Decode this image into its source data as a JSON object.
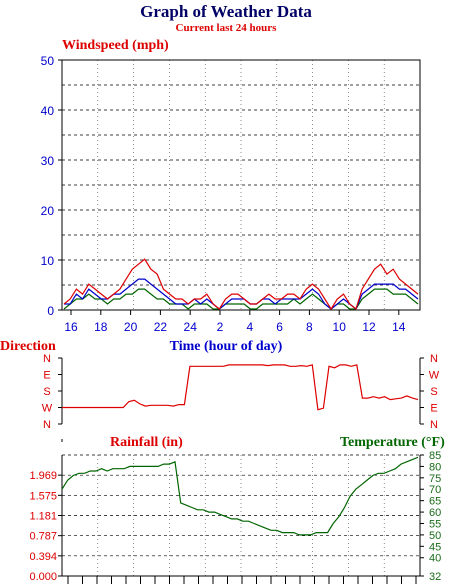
{
  "title": "Graph of Weather Data",
  "subtitle": "Current last 24 hours",
  "colors": {
    "title": "#000066",
    "red": "#dd0000",
    "blue": "#0000cc",
    "green": "#006600",
    "darkgreen": "#1a6b1a",
    "grid": "#000000"
  },
  "chart_data": [
    {
      "type": "line",
      "ylabel": "Windspeed (mph)",
      "xlabel": "Time (hour of day)",
      "ylim": [
        0,
        50
      ],
      "yticks": [
        "0",
        "10",
        "20",
        "30",
        "40",
        "50"
      ],
      "xticks": [
        "16",
        "18",
        "20",
        "22",
        "24",
        "2",
        "4",
        "6",
        "8",
        "10",
        "12",
        "14"
      ],
      "grid": true,
      "series_colors": [
        "red",
        "blue",
        "green"
      ],
      "series": [
        {
          "values": [
            1,
            2,
            4,
            3,
            5,
            4,
            3,
            2,
            3,
            4,
            6,
            8,
            9,
            10,
            8,
            7,
            4,
            3,
            2,
            2,
            1,
            2,
            2,
            3,
            1,
            0,
            2,
            3,
            3,
            2,
            1,
            1,
            2,
            3,
            2,
            2,
            3,
            3,
            2,
            4,
            5,
            4,
            2,
            0,
            2,
            3,
            1,
            0,
            4,
            6,
            8,
            9,
            7,
            8,
            6,
            5,
            4,
            3
          ]
        },
        {
          "values": [
            1,
            1,
            3,
            2,
            4,
            3,
            2,
            2,
            3,
            3,
            4,
            5,
            6,
            6,
            5,
            4,
            3,
            2,
            1,
            1,
            1,
            2,
            1,
            2,
            1,
            0,
            1,
            2,
            2,
            2,
            1,
            1,
            2,
            2,
            1,
            2,
            2,
            2,
            2,
            3,
            4,
            3,
            1,
            0,
            1,
            2,
            1,
            0,
            3,
            4,
            5,
            5,
            5,
            5,
            4,
            4,
            3,
            2
          ]
        },
        {
          "values": [
            0,
            1,
            2,
            2,
            3,
            2,
            2,
            1,
            2,
            2,
            3,
            3,
            4,
            4,
            3,
            2,
            2,
            1,
            1,
            1,
            0,
            1,
            1,
            1,
            0,
            0,
            1,
            1,
            1,
            1,
            0,
            0,
            1,
            1,
            1,
            1,
            1,
            2,
            1,
            2,
            3,
            2,
            1,
            0,
            1,
            1,
            0,
            0,
            2,
            3,
            4,
            4,
            4,
            3,
            3,
            3,
            2,
            1
          ]
        }
      ]
    },
    {
      "type": "line",
      "ylabel": "Direction",
      "xlabel": "",
      "yticks": [
        "N",
        "E",
        "S",
        "W",
        "N"
      ],
      "yticks_right": [
        "N",
        "W",
        "S",
        "E",
        "N"
      ],
      "ylim": [
        0,
        360
      ],
      "series": [
        {
          "values": [
            45,
            45,
            45,
            45,
            45,
            45,
            45,
            45,
            45,
            45,
            45,
            45,
            85,
            95,
            70,
            55,
            60,
            60,
            60,
            60,
            55,
            65,
            65,
            330,
            330,
            330,
            330,
            330,
            330,
            330,
            340,
            340,
            340,
            340,
            340,
            340,
            340,
            335,
            340,
            340,
            340,
            330,
            330,
            335,
            330,
            340,
            30,
            40,
            330,
            320,
            340,
            340,
            330,
            340,
            110,
            110,
            120,
            110,
            120,
            100,
            105,
            110,
            125,
            110,
            100
          ]
        }
      ]
    },
    {
      "type": "line",
      "ylabel": "Rainfall (in)",
      "ylabel_right": "Temperature (°F)",
      "ylim": [
        0,
        2.362
      ],
      "yticks": [
        "0.000",
        "0.394",
        "0.787",
        "1.181",
        "1.575",
        "1.969"
      ],
      "ylim_right": [
        32,
        85
      ],
      "yticks_right": [
        "32",
        "40",
        "45",
        "50",
        "55",
        "60",
        "65",
        "70",
        "75",
        "80",
        "85"
      ],
      "grid": true,
      "series": [
        {
          "values": [
            70,
            74,
            76,
            77,
            77,
            78,
            78,
            79,
            78,
            79,
            79,
            79,
            80,
            80,
            80,
            80,
            80,
            80,
            81,
            81,
            82,
            64,
            63,
            62,
            61,
            61,
            60,
            60,
            59,
            58,
            57,
            57,
            56,
            56,
            55,
            54,
            53,
            52,
            52,
            51,
            51,
            51,
            50,
            50,
            50,
            51,
            51,
            51,
            55,
            58,
            62,
            67,
            70,
            72,
            74,
            76,
            77,
            77,
            78,
            79,
            81,
            82,
            83,
            84
          ]
        }
      ]
    }
  ]
}
